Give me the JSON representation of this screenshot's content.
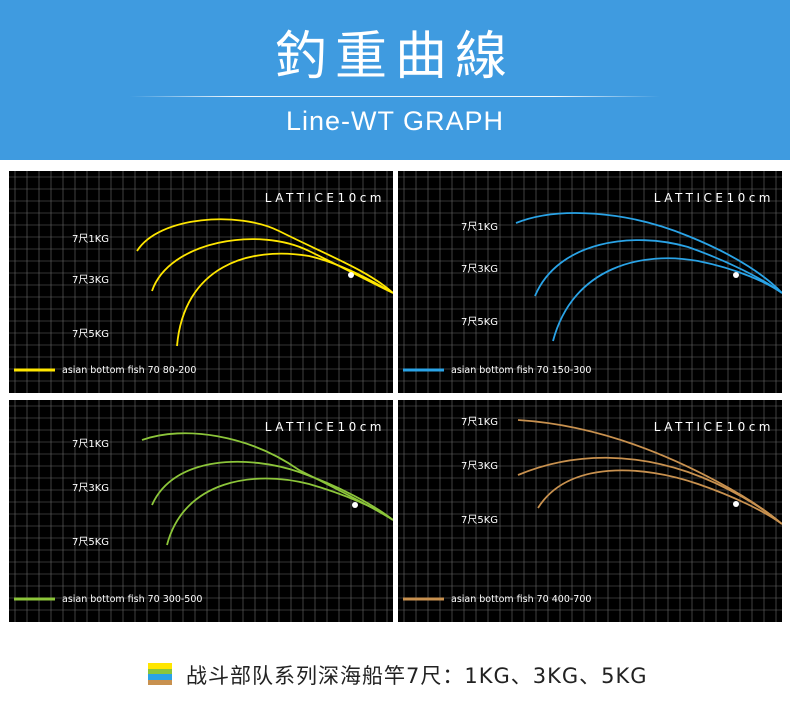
{
  "header": {
    "title": "釣重曲線",
    "subtitle": "Line-WT GRAPH",
    "background": "#3f9be0"
  },
  "chart_data": [
    {
      "type": "line",
      "grid_label": "LATTICE10cm",
      "legend": "asian bottom fish 70 80-200",
      "color": "#ffe600",
      "grid": true,
      "labels": [
        {
          "text": "7尺1KG",
          "series": 0
        },
        {
          "text": "7尺3KG",
          "series": 1
        },
        {
          "text": "7尺5KG",
          "series": 2
        }
      ]
    },
    {
      "type": "line",
      "grid_label": "LATTICE10cm",
      "legend": "asian bottom fish 70 150-300",
      "color": "#2aa3e6",
      "grid": true,
      "labels": [
        {
          "text": "7尺1KG",
          "series": 0
        },
        {
          "text": "7尺3KG",
          "series": 1
        },
        {
          "text": "7尺5KG",
          "series": 2
        }
      ]
    },
    {
      "type": "line",
      "grid_label": "LATTICE10cm",
      "legend": "asian bottom fish 70 300-500",
      "color": "#8cc53a",
      "grid": true,
      "labels": [
        {
          "text": "7尺1KG",
          "series": 0
        },
        {
          "text": "7尺3KG",
          "series": 1
        },
        {
          "text": "7尺5KG",
          "series": 2
        }
      ]
    },
    {
      "type": "line",
      "grid_label": "LATTICE10cm",
      "legend": "asian bottom fish 70 400-700",
      "color": "#c8914f",
      "grid": true,
      "labels": [
        {
          "text": "7尺1KG",
          "series": 0
        },
        {
          "text": "7尺3KG",
          "series": 1
        },
        {
          "text": "7尺5KG",
          "series": 2
        }
      ]
    }
  ],
  "footer": {
    "caption": "战斗部队系列深海船竿7尺：1KG、3KG、5KG",
    "swatch_colors": [
      "#ffe600",
      "#8cc53a",
      "#2aa3e6",
      "#c8914f"
    ]
  }
}
